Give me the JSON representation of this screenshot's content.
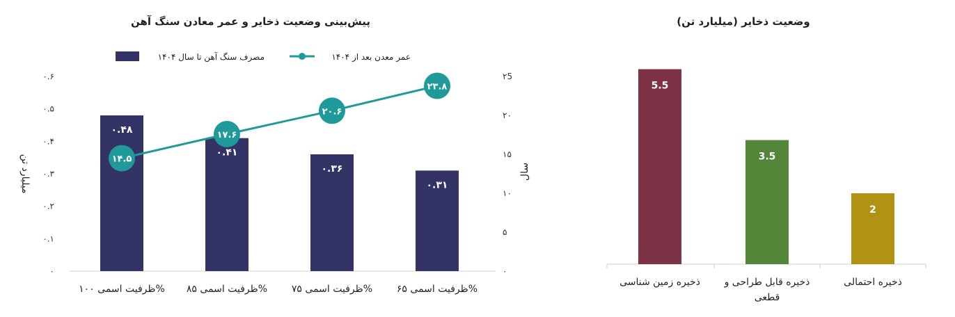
{
  "chart_data": [
    {
      "type": "bar",
      "title": "پیش‌بینی وضعیت ذخایر و عمر معادن سنگ آهن",
      "categories": [
        "ظرفیت اسمی ۱۰۰%",
        "ظرفیت اسمی ۸۵%",
        "ظرفیت اسمی ۷۵%",
        "ظرفیت اسمی ۶۵%"
      ],
      "series": [
        {
          "name": "مصرف سنگ آهن تا سال ۱۴۰۴",
          "type": "bar",
          "axis": "left",
          "values": [
            0.48,
            0.41,
            0.36,
            0.31
          ],
          "value_labels": [
            "۰.۴۸",
            "۰.۴۱",
            "۰.۳۶",
            "۰.۳۱"
          ],
          "color": "#333366"
        },
        {
          "name": "عمر معدن بعد از ۱۴۰۴",
          "type": "line",
          "axis": "right",
          "values": [
            14.5,
            17.6,
            20.6,
            23.8
          ],
          "value_labels": [
            "۱۴.۵",
            "۱۷.۶",
            "۲۰.۶",
            "۲۳.۸"
          ],
          "color": "#20999a"
        }
      ],
      "ylabel_left": "میلیارد تن",
      "ylabel_right": "سال",
      "ylim_left": [
        0,
        0.6
      ],
      "ylim_right": [
        0,
        25
      ],
      "yticks_left": [
        "۰",
        "۰.۱",
        "۰.۲",
        "۰.۳",
        "۰.۴",
        "۰.۵",
        "۰.۶"
      ],
      "yticks_right": [
        "۰",
        "۵",
        "۱۰",
        "۱۵",
        "۲۰",
        "۲5"
      ],
      "grid": false,
      "legend": "top"
    },
    {
      "type": "bar",
      "title": "وضعیت ذخایر (میلیارد تن)",
      "categories": [
        "ذخیره زمین شناسی",
        "ذخیره قابل طراحی و قطعی",
        "ذخیره احتمالی"
      ],
      "values": [
        5.5,
        3.5,
        2
      ],
      "value_labels": [
        "5.5",
        "3.5",
        "2"
      ],
      "colors": [
        "#7e3245",
        "#528538",
        "#b09312"
      ],
      "ylim": [
        0,
        6
      ],
      "grid": false,
      "legend": "none"
    }
  ]
}
